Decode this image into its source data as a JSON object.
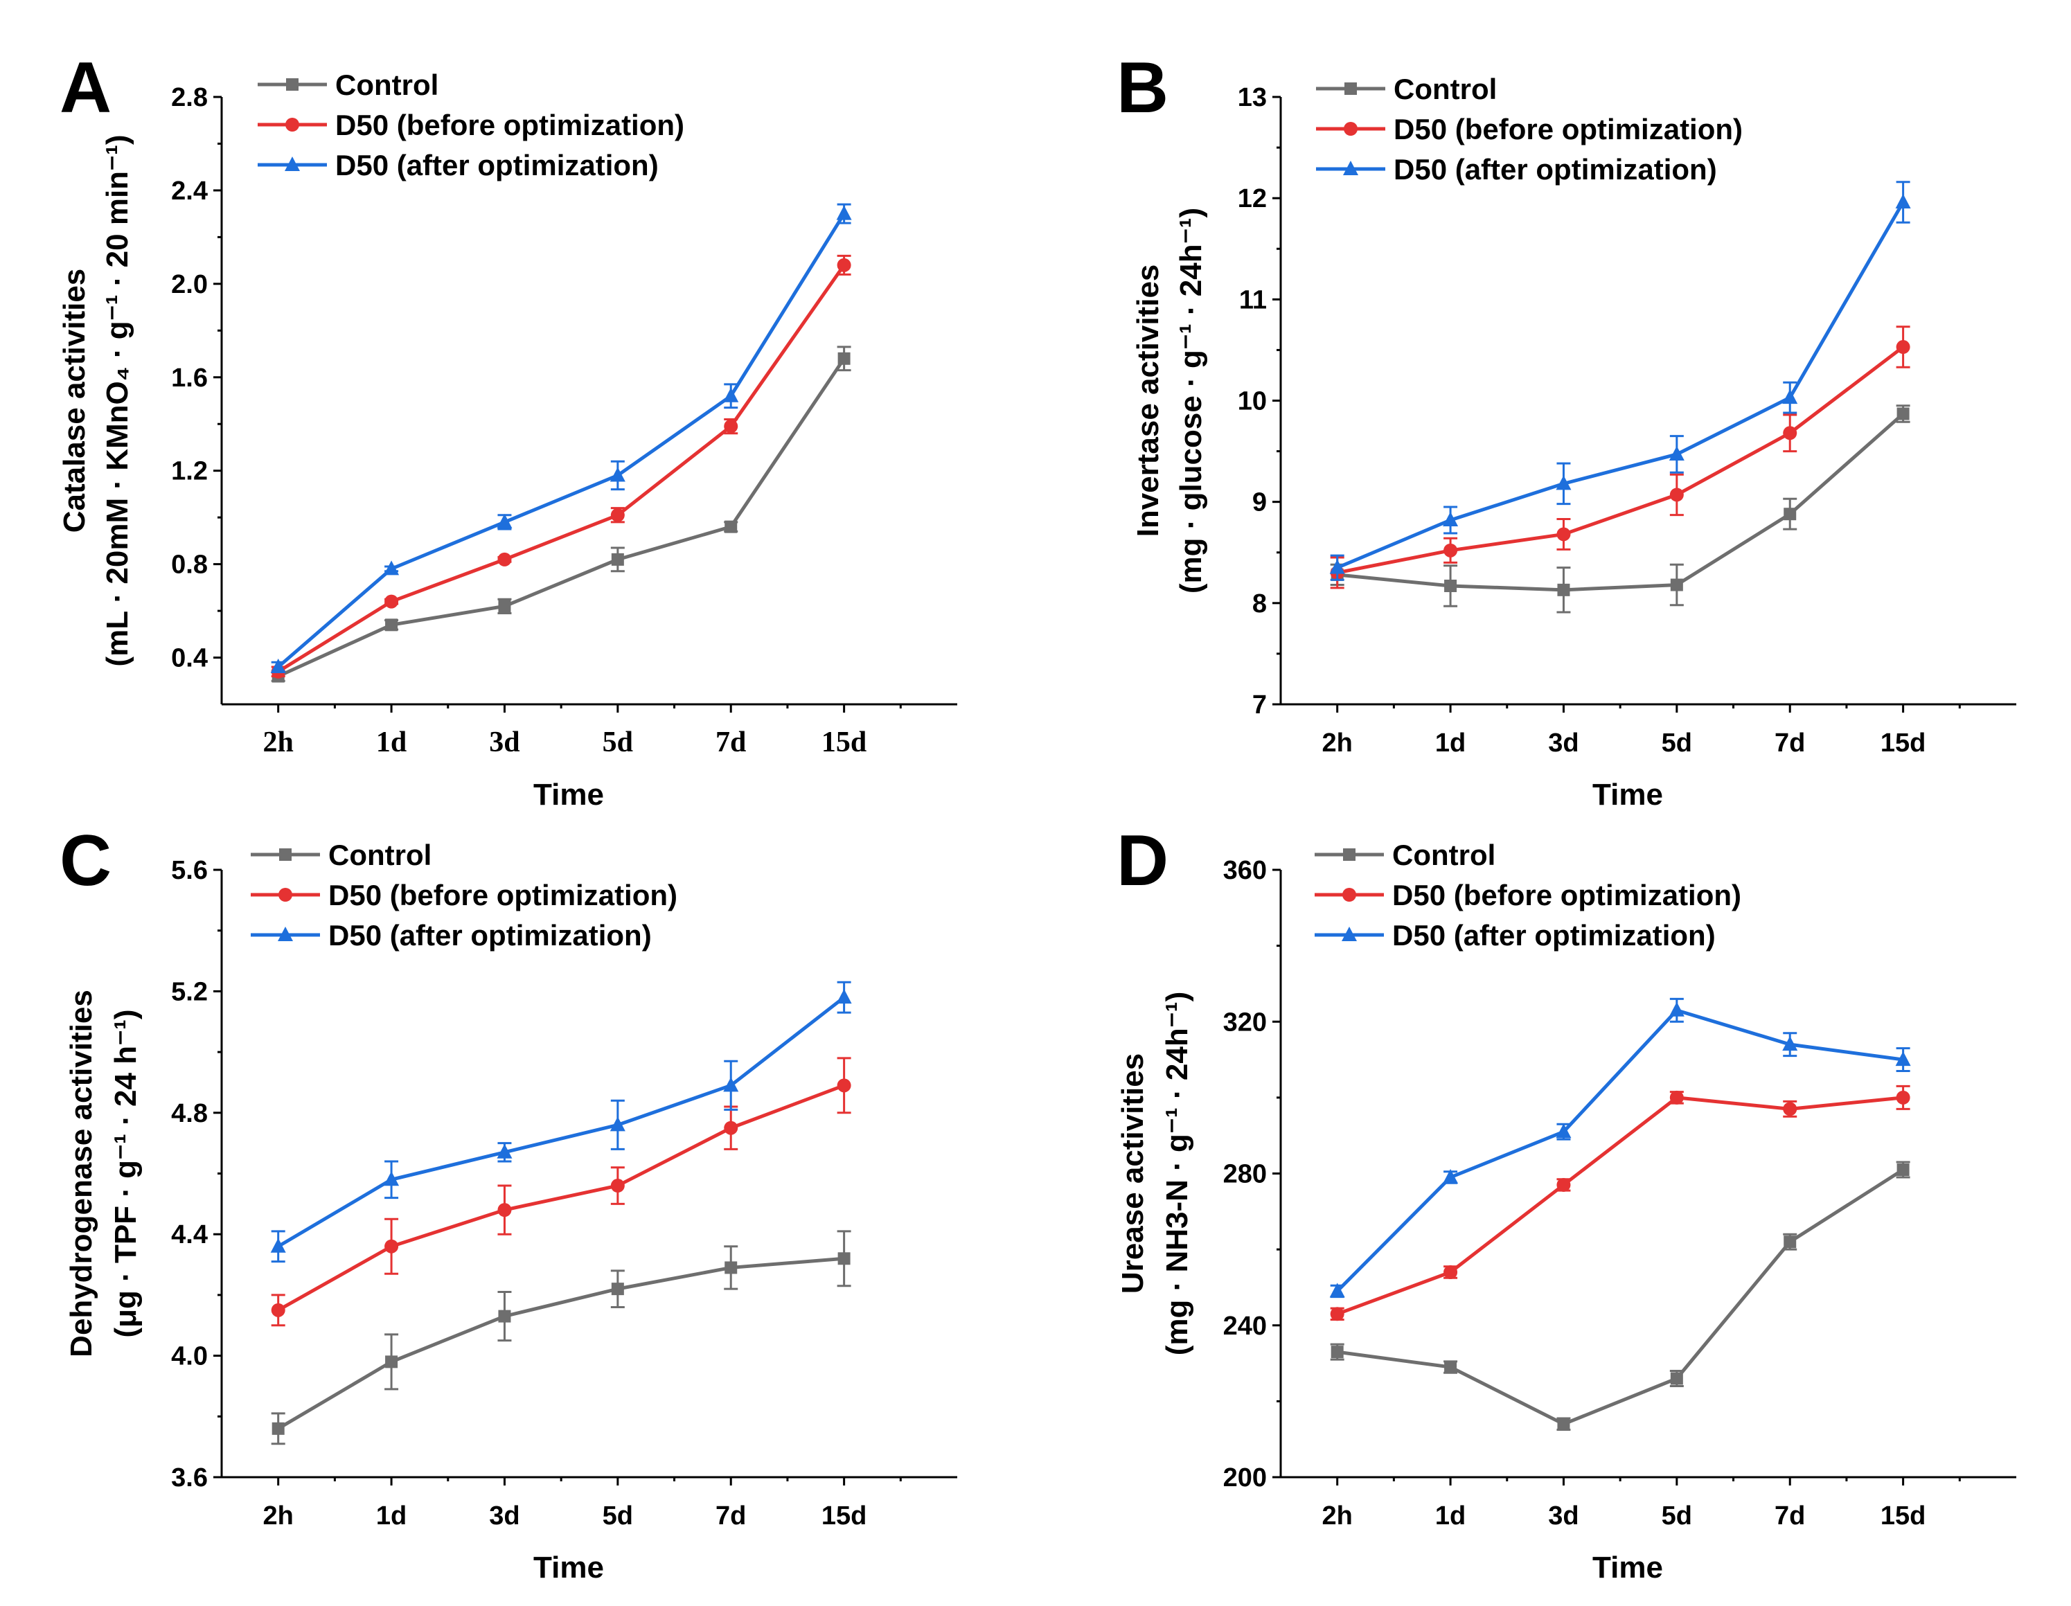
{
  "figure": {
    "colors": {
      "Control": "#6e6e6e",
      "D50 (before optimization)": "#e53232",
      "D50 (after optimization)": "#1e6fdc"
    }
  },
  "chart_data": [
    {
      "panel": "A",
      "type": "line",
      "title": "",
      "categories": [
        "2h",
        "1d",
        "3d",
        "5d",
        "7d",
        "15d"
      ],
      "xlabel": "Time",
      "ylabel_line1": "Catalase activities",
      "ylabel_line2": "(mL · 20mM · KMnO₄ · g⁻¹ · 20 min⁻¹)",
      "ylim": [
        0.2,
        2.8
      ],
      "yticks": [
        0.4,
        0.8,
        1.2,
        1.6,
        2.0,
        2.4,
        2.8
      ],
      "ytick_labels": [
        "0.4",
        "0.8",
        "1.2",
        "1.6",
        "2.0",
        "2.4",
        "2.8"
      ],
      "xtick_font": "serif",
      "legend_position": "top-left",
      "series": [
        {
          "name": "Control",
          "marker": "square",
          "values": [
            0.32,
            0.54,
            0.62,
            0.82,
            0.96,
            1.68
          ],
          "errors": [
            0.02,
            0.02,
            0.03,
            0.05,
            0.02,
            0.05
          ]
        },
        {
          "name": "D50 (before optimization)",
          "marker": "circle",
          "values": [
            0.34,
            0.64,
            0.82,
            1.01,
            1.39,
            2.08
          ],
          "errors": [
            0.02,
            0.01,
            0.01,
            0.03,
            0.03,
            0.04
          ]
        },
        {
          "name": "D50 (after optimization)",
          "marker": "triangle",
          "values": [
            0.36,
            0.78,
            0.98,
            1.18,
            1.52,
            2.3
          ],
          "errors": [
            0.02,
            0.01,
            0.03,
            0.06,
            0.05,
            0.04
          ]
        }
      ]
    },
    {
      "panel": "B",
      "type": "line",
      "title": "",
      "categories": [
        "2h",
        "1d",
        "3d",
        "5d",
        "7d",
        "15d"
      ],
      "xlabel": "Time",
      "ylabel_line1": "Invertase activities",
      "ylabel_line2": "(mg · glucose · g⁻¹ · 24h⁻¹)",
      "ylim": [
        7,
        13
      ],
      "yticks": [
        7,
        8,
        9,
        10,
        11,
        12,
        13
      ],
      "ytick_labels": [
        "7",
        "8",
        "9",
        "10",
        "11",
        "12",
        "13"
      ],
      "xtick_font": "sans",
      "legend_position": "top-left",
      "series": [
        {
          "name": "Control",
          "marker": "square",
          "values": [
            8.28,
            8.17,
            8.13,
            8.18,
            8.88,
            9.87
          ],
          "errors": [
            0.1,
            0.2,
            0.22,
            0.2,
            0.15,
            0.08
          ]
        },
        {
          "name": "D50 (before optimization)",
          "marker": "circle",
          "values": [
            8.3,
            8.52,
            8.68,
            9.07,
            9.68,
            10.53
          ],
          "errors": [
            0.15,
            0.12,
            0.15,
            0.2,
            0.18,
            0.2
          ]
        },
        {
          "name": "D50 (after optimization)",
          "marker": "triangle",
          "values": [
            8.35,
            8.82,
            9.18,
            9.47,
            10.03,
            11.96
          ],
          "errors": [
            0.12,
            0.13,
            0.2,
            0.18,
            0.15,
            0.2
          ]
        }
      ]
    },
    {
      "panel": "C",
      "type": "line",
      "title": "",
      "categories": [
        "2h",
        "1d",
        "3d",
        "5d",
        "7d",
        "15d"
      ],
      "xlabel": "Time",
      "ylabel_line1": "Dehydrogenase activities",
      "ylabel_line2": "(μg · TPF · g⁻¹ · 24 h⁻¹)",
      "ylim": [
        3.6,
        5.6
      ],
      "yticks": [
        3.6,
        4.0,
        4.4,
        4.8,
        5.2,
        5.6
      ],
      "ytick_labels": [
        "3.6",
        "4.0",
        "4.4",
        "4.8",
        "5.2",
        "5.6"
      ],
      "xtick_font": "sans",
      "legend_position": "top-left",
      "series": [
        {
          "name": "Control",
          "marker": "square",
          "values": [
            3.76,
            3.98,
            4.13,
            4.22,
            4.29,
            4.32
          ],
          "errors": [
            0.05,
            0.09,
            0.08,
            0.06,
            0.07,
            0.09
          ]
        },
        {
          "name": "D50 (before optimization)",
          "marker": "circle",
          "values": [
            4.15,
            4.36,
            4.48,
            4.56,
            4.75,
            4.89
          ],
          "errors": [
            0.05,
            0.09,
            0.08,
            0.06,
            0.07,
            0.09
          ]
        },
        {
          "name": "D50 (after optimization)",
          "marker": "triangle",
          "values": [
            4.36,
            4.58,
            4.67,
            4.76,
            4.89,
            5.18
          ],
          "errors": [
            0.05,
            0.06,
            0.03,
            0.08,
            0.08,
            0.05
          ]
        }
      ]
    },
    {
      "panel": "D",
      "type": "line",
      "title": "",
      "categories": [
        "2h",
        "1d",
        "3d",
        "5d",
        "7d",
        "15d"
      ],
      "xlabel": "Time",
      "ylabel_line1": "Urease activities",
      "ylabel_line2": "(mg · NH3-N · g⁻¹ · 24h⁻¹)",
      "ylim": [
        200,
        360
      ],
      "yticks": [
        200,
        240,
        280,
        320,
        360
      ],
      "ytick_labels": [
        "200",
        "240",
        "280",
        "320",
        "360"
      ],
      "xtick_font": "sans",
      "legend_position": "top-left",
      "series": [
        {
          "name": "Control",
          "marker": "square",
          "values": [
            233,
            229,
            214,
            226,
            262,
            281
          ],
          "errors": [
            2,
            1.5,
            1.5,
            2,
            2,
            2
          ]
        },
        {
          "name": "D50 (before optimization)",
          "marker": "circle",
          "values": [
            243,
            254,
            277,
            300,
            297,
            300
          ],
          "errors": [
            1.5,
            1.5,
            1.5,
            1.5,
            2,
            3
          ]
        },
        {
          "name": "D50 (after optimization)",
          "marker": "triangle",
          "values": [
            249,
            279,
            291,
            323,
            314,
            310
          ],
          "errors": [
            1.5,
            1.5,
            2,
            3,
            3,
            3
          ]
        }
      ]
    }
  ]
}
